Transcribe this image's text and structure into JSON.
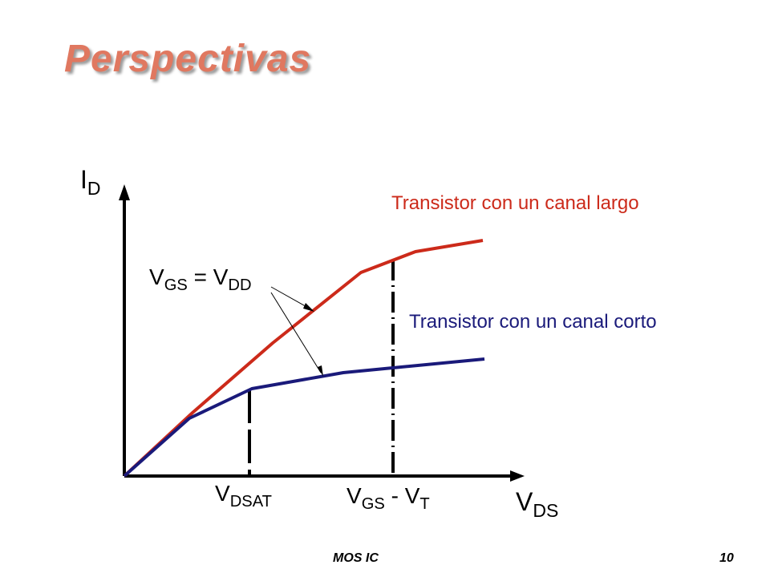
{
  "slide": {
    "title": "Perspectivas",
    "title_color": "#e07860",
    "footer_left": "MOS IC",
    "footer_right": "10"
  },
  "diagram": {
    "y_axis_label": {
      "main": "I",
      "sub": "D"
    },
    "x_axis_label": {
      "main": "V",
      "sub": "DS"
    },
    "vdsat_label": {
      "main": "V",
      "sub": "DSAT"
    },
    "vgs_vt_label": {
      "v1": "V",
      "sub1": "GS",
      "mid": " - V",
      "sub2": "T"
    },
    "vgs_vdd_label": {
      "v1": "V",
      "sub1": "GS",
      "mid": " = V",
      "sub2": "DD"
    },
    "long_channel_label": "Transistor con un canal largo",
    "short_channel_label": "Transistor con un canal corto",
    "long_channel_color": "#cc2a1a",
    "short_channel_color": "#1a1a7a"
  }
}
